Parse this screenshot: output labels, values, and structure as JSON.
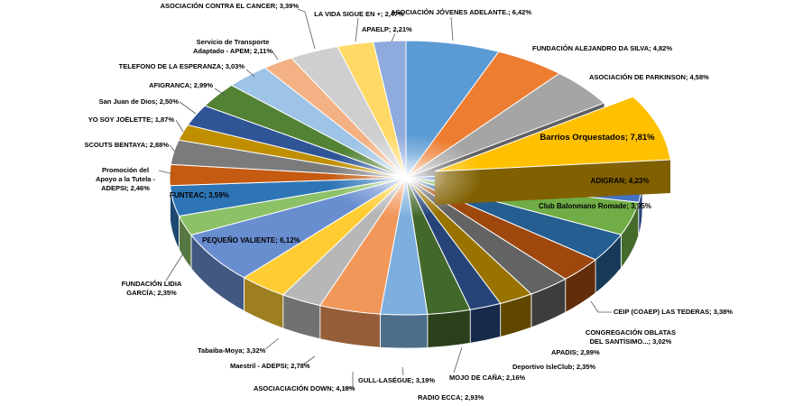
{
  "chart_data": {
    "type": "pie",
    "style": "3d-exploded",
    "direction": "clockwise",
    "start_angle_deg": 0,
    "legend": "none",
    "value_format": "percent-decimal-comma",
    "exploded_slice": "Barrios Orquestados",
    "slices": [
      {
        "name": "ASOCIACIÓN JÓVENES ADELANTE.",
        "value": 6.42,
        "label": "ASOCIACIÓN JÓVENES ADELANTE.; 6,42%",
        "color": "#5B9BD5"
      },
      {
        "name": "FUNDACIÓN ALEJANDRO DA SILVA",
        "value": 4.82,
        "label": "FUNDACIÓN ALEJANDRO DA SILVA; 4,82%",
        "color": "#ED7D31"
      },
      {
        "name": "ASOCIACIÓN DE PARKINSON",
        "value": 4.58,
        "label": "ASOCIACIÓN DE PARKINSON; 4,58%",
        "color": "#A5A5A5"
      },
      {
        "name": "Barrios Orquestados",
        "value": 7.81,
        "label": "Barrios Orquestados; 7,81%",
        "color": "#FFC000"
      },
      {
        "name": "ADIGRAN",
        "value": 4.23,
        "label": "ADIGRAN; 4,23%",
        "color": "#4472C4"
      },
      {
        "name": "Club Balonmano Romade",
        "value": 3.95,
        "label": "Club Balonmano Romade; 3,95%",
        "color": "#70AD47"
      },
      {
        "name": "CEIP (COAEP) LAS TEDERAS",
        "value": 3.38,
        "label": "CEIP (COAEP) LAS TEDERAS; 3,38%",
        "color": "#255E91"
      },
      {
        "name": "CONGREGACIÓN OBLATAS DEL SANTÍSIMO...",
        "value": 3.02,
        "label": "CONGREGACIÓN OBLATAS DEL SANTÍSIMO...; 3,02%",
        "color": "#9E480E"
      },
      {
        "name": "APADIS",
        "value": 2.89,
        "label": "APADIS; 2,89%",
        "color": "#636363"
      },
      {
        "name": "Deportivo IsleClub",
        "value": 2.35,
        "label": "Deportivo IsleClub; 2,35%",
        "color": "#997300"
      },
      {
        "name": "MOJO DE CAÑA",
        "value": 2.16,
        "label": "MOJO DE CAÑA; 2,16%",
        "color": "#264478"
      },
      {
        "name": "RADIO ECCA",
        "value": 2.93,
        "label": "RADIO ECCA; 2,93%",
        "color": "#43682B"
      },
      {
        "name": "GULL-LASÉGUE",
        "value": 3.19,
        "label": "GULL-LASÉGUE; 3,19%",
        "color": "#7CAFDD"
      },
      {
        "name": "ASOCIACIACIÓN DOWN",
        "value": 4.18,
        "label": "ASOCIACIACIÓN DOWN; 4,18%",
        "color": "#F1975A"
      },
      {
        "name": "Maestril - ADEPSI",
        "value": 2.78,
        "label": "Maestril - ADEPSI; 2,78%",
        "color": "#B7B7B7"
      },
      {
        "name": "Tabaiba-Moya",
        "value": 3.32,
        "label": "Tabaiba-Moya; 3,32%",
        "color": "#FFCD33"
      },
      {
        "name": "PEQUEÑO VALIENTE",
        "value": 6.12,
        "label": "PEQUEÑO VALIENTE; 6,12%",
        "color": "#698ED0"
      },
      {
        "name": "FUNDACIÓN LIDIA GARCÍA",
        "value": 2.35,
        "label": "FUNDACIÓN LIDIA GARCÍA; 2,35%",
        "color": "#8CC168"
      },
      {
        "name": "FUNTEAC",
        "value": 3.59,
        "label": "FUNTEAC; 3,59%",
        "color": "#2E75B6"
      },
      {
        "name": "Promoción del Apoyo a la Tutela - ADEPSI",
        "value": 2.46,
        "label": "Promoción del Apoyo a la Tutela - ADEPSI; 2,46%",
        "color": "#C55A11"
      },
      {
        "name": "SCOUTS BENTAYA",
        "value": 2.88,
        "label": "SCOUTS BENTAYA; 2,88%",
        "color": "#7B7B7B"
      },
      {
        "name": "YO SOY JOËLETTE",
        "value": 1.87,
        "label": "YO SOY JOËLETTE; 1,87%",
        "color": "#BF8F00"
      },
      {
        "name": "San Juan de Dios",
        "value": 2.5,
        "label": "San Juan de Dios; 2,50%",
        "color": "#2F5597"
      },
      {
        "name": "AFIGRANCA",
        "value": 2.99,
        "label": "AFIGRANCA; 2,99%",
        "color": "#548235"
      },
      {
        "name": "TELEFONO DE LA ESPERANZA",
        "value": 3.03,
        "label": "TELEFONO DE LA ESPERANZA; 3,03%",
        "color": "#9DC3E6"
      },
      {
        "name": "Servicio de Transporte Adaptado - APEM",
        "value": 2.11,
        "label": "Servicio de Transporte Adaptado - APEM; 2,11%",
        "color": "#F4B183"
      },
      {
        "name": "ASOCIACIÓN CONTRA EL CANCER",
        "value": 3.39,
        "label": "ASOCIACIÓN CONTRA EL CANCER; 3,39%",
        "color": "#CFCFCF"
      },
      {
        "name": "LA VIDA SIGUE EN +",
        "value": 2.47,
        "label": "LA VIDA SIGUE EN +; 2,47%",
        "color": "#FFD966"
      },
      {
        "name": "APAELP",
        "value": 2.21,
        "label": "APAELP; 2,21%",
        "color": "#8FAADC"
      }
    ]
  }
}
